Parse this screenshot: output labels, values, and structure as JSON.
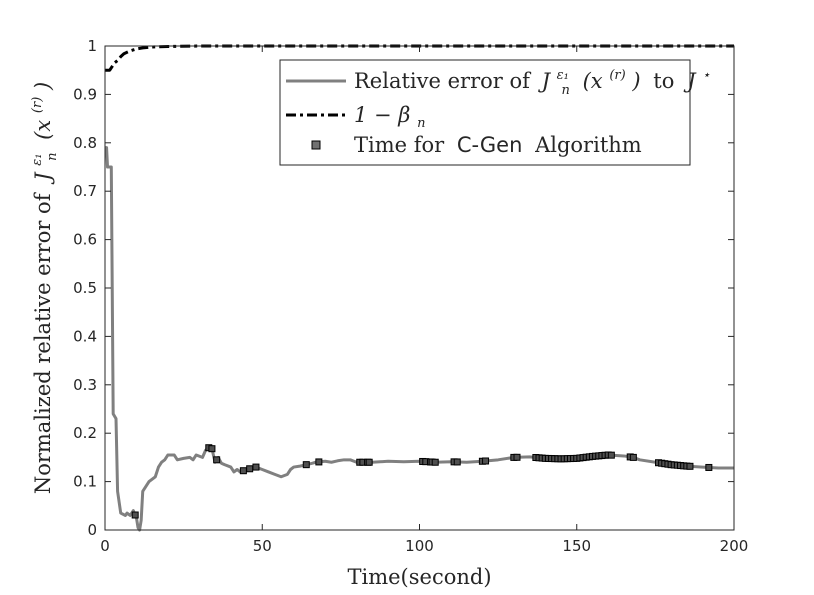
{
  "chart_data": {
    "type": "line",
    "title": "",
    "xlabel": "Time(second)",
    "ylabel": {
      "prefix": "Normalized relative error of",
      "math": "J",
      "sup": "ε₁",
      "sub": "n",
      "arg": "(x",
      "arg_sup": "(r)",
      "arg_close": ")"
    },
    "xlim": [
      0,
      200
    ],
    "ylim": [
      0,
      1
    ],
    "xticks": [
      0,
      50,
      100,
      150,
      200
    ],
    "yticks": [
      0,
      0.1,
      0.2,
      0.3,
      0.4,
      0.5,
      0.6,
      0.7,
      0.8,
      0.9,
      1
    ],
    "grid": false,
    "legend_position": "top-right",
    "legend": [
      {
        "series": "relative",
        "text_pre": "Relative error of",
        "math_J": "J",
        "math_sup": "ε₁",
        "math_sub": "n",
        "math_arg": "(x",
        "math_arg_sup": "(r)",
        "math_arg_close": ")",
        "text_mid": "to",
        "math_Jstar": "J",
        "math_star": "⋆"
      },
      {
        "series": "beta",
        "text": "1 − β",
        "sub": "n"
      },
      {
        "series": "cgen",
        "text_pre": "Time for",
        "sans": "C-Gen",
        "text_post": "Algorithm"
      }
    ],
    "colors": {
      "relative": "#808080",
      "beta": "#000000",
      "marker": "#000000"
    },
    "series": [
      {
        "id": "relative",
        "style": "solid",
        "points": [
          [
            0,
            0.79
          ],
          [
            0.5,
            0.79
          ],
          [
            0.8,
            0.75
          ],
          [
            2,
            0.75
          ],
          [
            2.3,
            0.5
          ],
          [
            2.6,
            0.24
          ],
          [
            3.5,
            0.23
          ],
          [
            4,
            0.08
          ],
          [
            5,
            0.035
          ],
          [
            6.5,
            0.03
          ],
          [
            7,
            0.035
          ],
          [
            8,
            0.03
          ],
          [
            9,
            0.04
          ],
          [
            10,
            0.025
          ],
          [
            10.5,
            0.005
          ],
          [
            11,
            0.0
          ],
          [
            11.5,
            0.02
          ],
          [
            12,
            0.08
          ],
          [
            13,
            0.09
          ],
          [
            14,
            0.1
          ],
          [
            15,
            0.105
          ],
          [
            16,
            0.11
          ],
          [
            17,
            0.13
          ],
          [
            18,
            0.14
          ],
          [
            19,
            0.145
          ],
          [
            20,
            0.155
          ],
          [
            22,
            0.155
          ],
          [
            23,
            0.145
          ],
          [
            25,
            0.148
          ],
          [
            27,
            0.15
          ],
          [
            28,
            0.145
          ],
          [
            29,
            0.155
          ],
          [
            31,
            0.15
          ],
          [
            32,
            0.165
          ],
          [
            33,
            0.17
          ],
          [
            34,
            0.168
          ],
          [
            35,
            0.14
          ],
          [
            36,
            0.15
          ],
          [
            37,
            0.138
          ],
          [
            38,
            0.135
          ],
          [
            40,
            0.13
          ],
          [
            41,
            0.12
          ],
          [
            42,
            0.125
          ],
          [
            43,
            0.12
          ],
          [
            45,
            0.125
          ],
          [
            47,
            0.128
          ],
          [
            48,
            0.13
          ],
          [
            50,
            0.125
          ],
          [
            52,
            0.12
          ],
          [
            54,
            0.115
          ],
          [
            56,
            0.11
          ],
          [
            58,
            0.115
          ],
          [
            59,
            0.125
          ],
          [
            60,
            0.13
          ],
          [
            62,
            0.132
          ],
          [
            64,
            0.135
          ],
          [
            66,
            0.138
          ],
          [
            67,
            0.14
          ],
          [
            70,
            0.142
          ],
          [
            72,
            0.14
          ],
          [
            74,
            0.143
          ],
          [
            76,
            0.145
          ],
          [
            78,
            0.145
          ],
          [
            80,
            0.14
          ],
          [
            85,
            0.14
          ],
          [
            90,
            0.142
          ],
          [
            95,
            0.141
          ],
          [
            100,
            0.142
          ],
          [
            105,
            0.14
          ],
          [
            110,
            0.141
          ],
          [
            115,
            0.14
          ],
          [
            120,
            0.142
          ],
          [
            125,
            0.145
          ],
          [
            130,
            0.15
          ],
          [
            135,
            0.151
          ],
          [
            140,
            0.148
          ],
          [
            145,
            0.147
          ],
          [
            150,
            0.148
          ],
          [
            155,
            0.152
          ],
          [
            160,
            0.155
          ],
          [
            165,
            0.153
          ],
          [
            168,
            0.15
          ],
          [
            170,
            0.145
          ],
          [
            175,
            0.14
          ],
          [
            180,
            0.135
          ],
          [
            185,
            0.132
          ],
          [
            190,
            0.13
          ],
          [
            195,
            0.128
          ],
          [
            200,
            0.128
          ]
        ]
      },
      {
        "id": "beta",
        "style": "dashdot",
        "points": [
          [
            0,
            0.95
          ],
          [
            1.5,
            0.95
          ],
          [
            2,
            0.955
          ],
          [
            2.5,
            0.96
          ],
          [
            3,
            0.965
          ],
          [
            4,
            0.97
          ],
          [
            5,
            0.978
          ],
          [
            6,
            0.984
          ],
          [
            8,
            0.99
          ],
          [
            10,
            0.994
          ],
          [
            12,
            0.996
          ],
          [
            15,
            0.998
          ],
          [
            20,
            0.999
          ],
          [
            30,
            1.0
          ],
          [
            200,
            1.0
          ]
        ]
      }
    ],
    "markers": {
      "id": "cgen",
      "x": [
        9.6,
        33,
        34,
        35.5,
        44,
        46,
        48,
        64,
        68,
        81,
        82,
        83.5,
        84,
        101,
        102,
        103.5,
        104,
        105,
        111,
        112,
        120,
        121,
        130,
        131,
        137,
        138,
        139,
        140,
        141,
        142,
        143,
        144,
        145,
        146,
        147,
        148,
        149,
        150,
        151,
        152,
        153,
        154,
        155,
        156,
        157,
        158,
        159,
        160,
        161,
        167,
        168,
        176,
        177,
        178,
        179,
        180,
        181,
        182,
        183,
        184,
        185,
        186,
        192
      ]
    }
  }
}
